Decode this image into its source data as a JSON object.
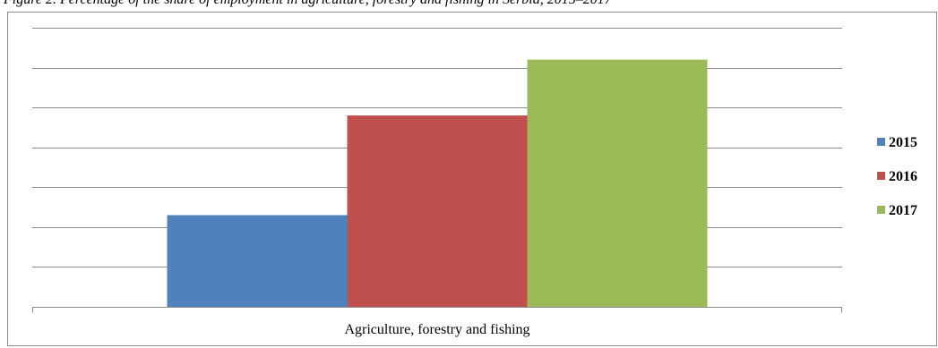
{
  "caption": "Figure 2. Percentage of the share of employment in agriculture, forestry and fishing in Serbia, 2015–2017",
  "chart_data": {
    "type": "bar",
    "categories": [
      "Agriculture, forestry and fishing"
    ],
    "series": [
      {
        "name": "2015",
        "values": [
          23
        ],
        "color": "#4f81bd"
      },
      {
        "name": "2016",
        "values": [
          48
        ],
        "color": "#c0504d"
      },
      {
        "name": "2017",
        "values": [
          62
        ],
        "color": "#9bbb59"
      }
    ],
    "ylim": [
      0,
      70
    ],
    "ytick_step": 10,
    "grid": true,
    "legend": "right"
  }
}
